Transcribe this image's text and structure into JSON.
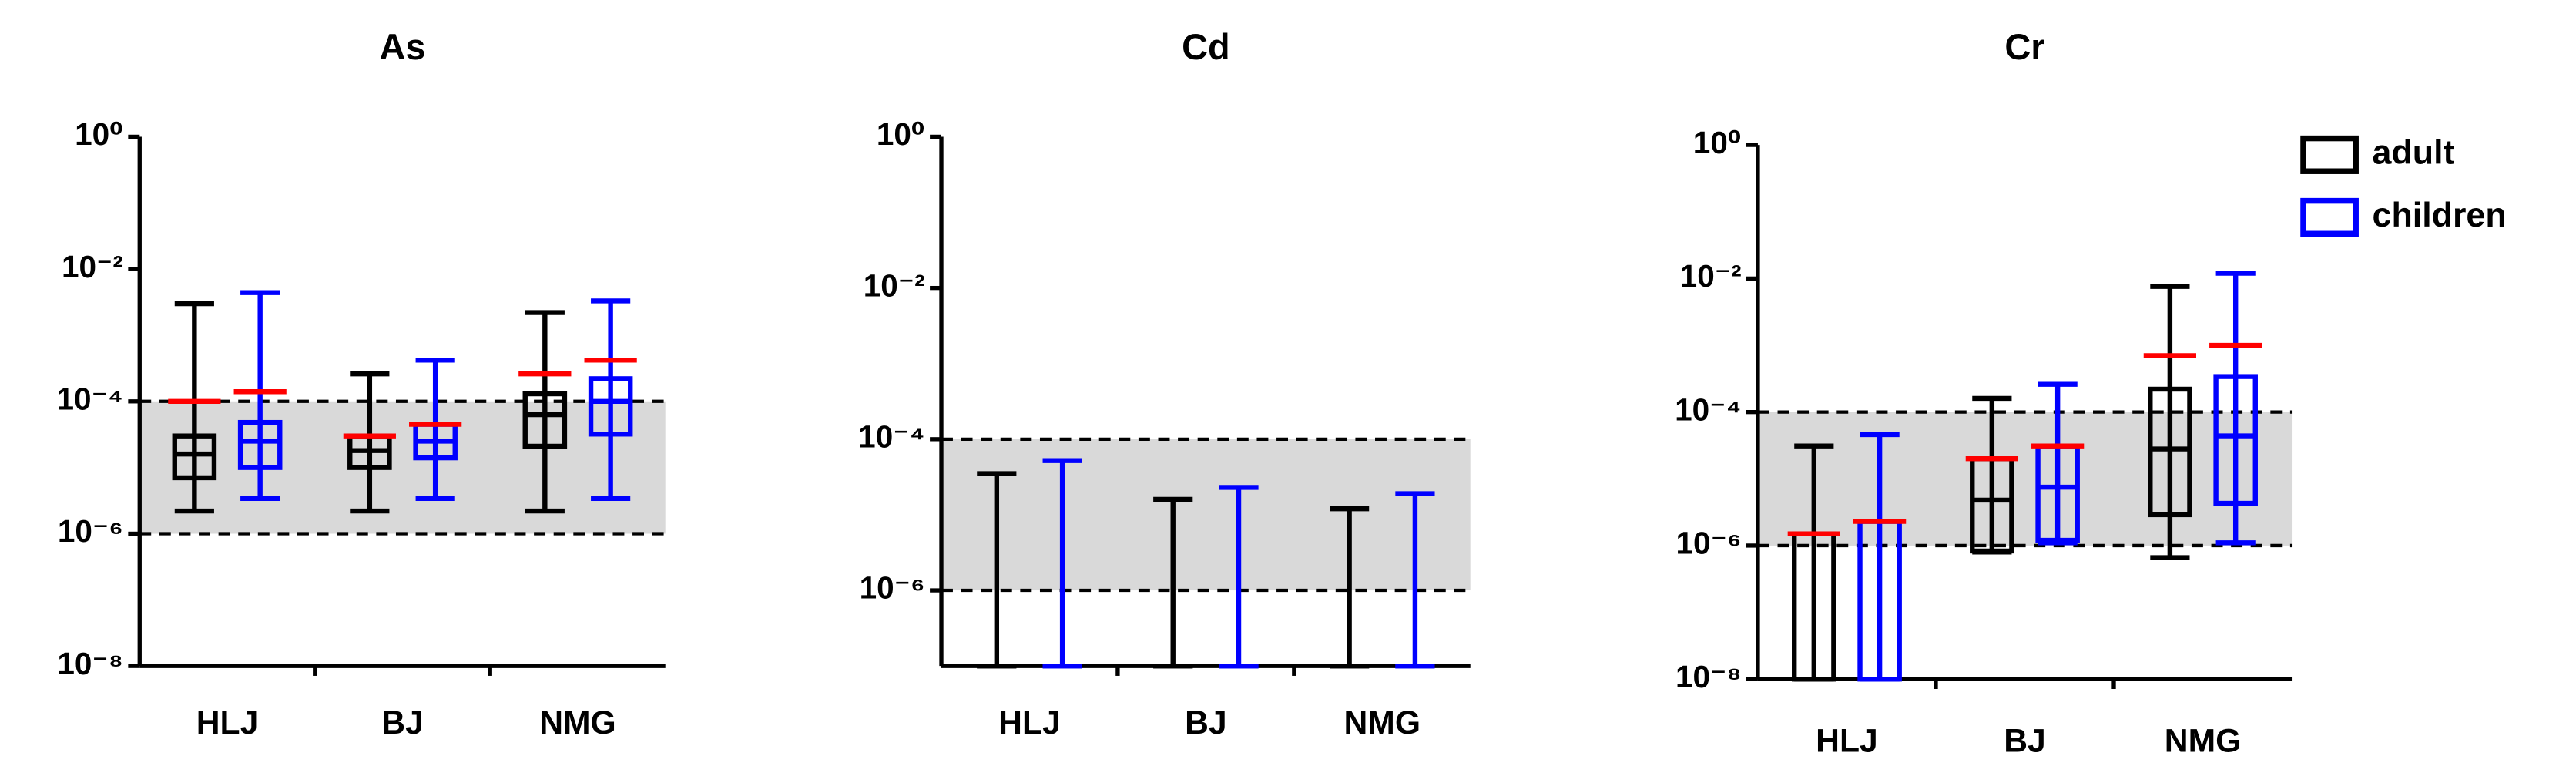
{
  "chart_data": [
    {
      "type": "box",
      "title": "As",
      "categories": [
        "HLJ",
        "BJ",
        "NMG"
      ],
      "yscale": "log",
      "ylim": [
        1e-08,
        1
      ],
      "yticks": [
        {
          "value": 1,
          "label": "10⁰"
        },
        {
          "value": 0.01,
          "label": "10⁻²"
        },
        {
          "value": 0.0001,
          "label": "10⁻⁴"
        },
        {
          "value": 1e-06,
          "label": "10⁻⁶"
        },
        {
          "value": 1e-08,
          "label": "10⁻⁸"
        }
      ],
      "band": {
        "range": [
          1e-06,
          0.0001
        ],
        "color": "#d9d9d9"
      },
      "mean_color": "#ff0000",
      "series": [
        {
          "color": "#000000",
          "whisker_low": [
            2.2e-06,
            2.2e-06,
            2.2e-06
          ],
          "q1": [
            7e-06,
            1e-05,
            2.1e-05
          ],
          "median": [
            1.6e-05,
            1.8e-05,
            6.3e-05
          ],
          "q3": [
            3e-05,
            3e-05,
            0.00013
          ],
          "whisker_high": [
            0.003,
            0.00026,
            0.0022
          ],
          "mean": [
            0.0001,
            3e-05,
            0.00026
          ]
        },
        {
          "color": "#0000ff",
          "whisker_low": [
            3.4e-06,
            3.4e-06,
            3.4e-06
          ],
          "q1": [
            1e-05,
            1.4e-05,
            3.2e-05
          ],
          "median": [
            2.5e-05,
            2.5e-05,
            0.0001
          ],
          "q3": [
            4.8e-05,
            4.5e-05,
            0.00022
          ],
          "whisker_high": [
            0.0044,
            0.00042,
            0.0033
          ],
          "mean": [
            0.00014,
            4.5e-05,
            0.00042
          ]
        }
      ]
    },
    {
      "type": "box",
      "title": "Cd",
      "categories": [
        "HLJ",
        "BJ",
        "NMG"
      ],
      "yscale": "log",
      "ylim": [
        1e-07,
        1
      ],
      "yticks": [
        {
          "value": 1,
          "label": "10⁰"
        },
        {
          "value": 0.01,
          "label": "10⁻²"
        },
        {
          "value": 0.0001,
          "label": "10⁻⁴"
        },
        {
          "value": 1e-06,
          "label": "10⁻⁶"
        }
      ],
      "band": {
        "range": [
          1e-06,
          0.0001
        ],
        "color": "#d9d9d9"
      },
      "series": [
        {
          "color": "#000000",
          "whisker_low": [
            1e-07,
            1e-07,
            1e-07
          ],
          "q1": [
            1e-07,
            1e-07,
            1e-07
          ],
          "median": [
            1e-07,
            1e-07,
            1e-07
          ],
          "q3": [
            1e-07,
            1e-07,
            1e-07
          ],
          "whisker_high": [
            3.5e-05,
            1.6e-05,
            1.2e-05
          ]
        },
        {
          "color": "#0000ff",
          "whisker_low": [
            1e-07,
            1e-07,
            1e-07
          ],
          "q1": [
            1e-07,
            1e-07,
            1e-07
          ],
          "median": [
            1e-07,
            1e-07,
            1e-07
          ],
          "q3": [
            1e-07,
            1e-07,
            1e-07
          ],
          "whisker_high": [
            5.2e-05,
            2.3e-05,
            1.9e-05
          ]
        }
      ]
    },
    {
      "type": "box",
      "title": "Cr",
      "categories": [
        "HLJ",
        "BJ",
        "NMG"
      ],
      "yscale": "log",
      "ylim": [
        1e-08,
        1
      ],
      "yticks": [
        {
          "value": 1,
          "label": "10⁰"
        },
        {
          "value": 0.01,
          "label": "10⁻²"
        },
        {
          "value": 0.0001,
          "label": "10⁻⁴"
        },
        {
          "value": 1e-06,
          "label": "10⁻⁶"
        },
        {
          "value": 1e-08,
          "label": "10⁻⁸"
        }
      ],
      "band": {
        "range": [
          1e-06,
          0.0001
        ],
        "color": "#d9d9d9"
      },
      "mean_color": "#ff0000",
      "legend": "upper right",
      "series": [
        {
          "name": "adult",
          "color": "#000000",
          "whisker_low": [
            1e-08,
            8e-07,
            6.6e-07
          ],
          "q1": [
            1e-08,
            8.3e-07,
            2.9e-06
          ],
          "median": [
            1e-08,
            4.8e-06,
            2.8e-05
          ],
          "q3": [
            1.5e-06,
            2e-05,
            0.00022
          ],
          "whisker_high": [
            3.1e-05,
            0.00016,
            0.0076
          ],
          "mean": [
            1.5e-06,
            2e-05,
            0.0007
          ]
        },
        {
          "name": "children",
          "color": "#0000ff",
          "whisker_low": [
            1e-08,
            1.1e-06,
            1.1e-06
          ],
          "q1": [
            1e-08,
            1.2e-06,
            4.3e-06
          ],
          "median": [
            1e-08,
            7.5e-06,
            4.4e-05
          ],
          "q3": [
            2.3e-06,
            3.1e-05,
            0.00034
          ],
          "whisker_high": [
            4.6e-05,
            0.00026,
            0.012
          ],
          "mean": [
            2.3e-06,
            3.1e-05,
            0.001
          ]
        }
      ]
    }
  ]
}
